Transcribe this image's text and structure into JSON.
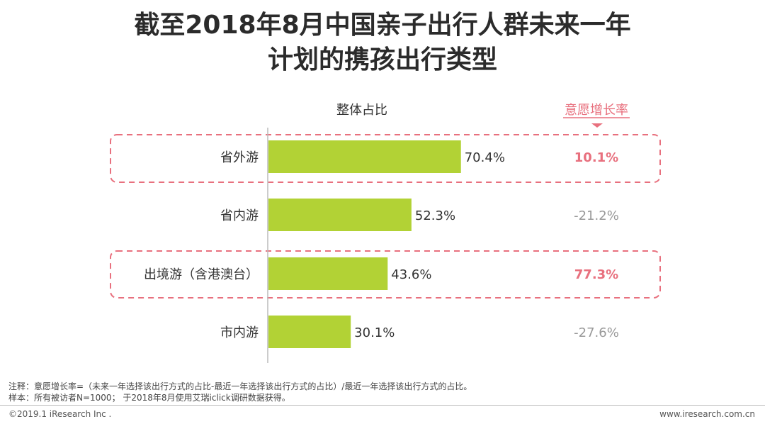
{
  "title_line1": "截至2018年8月中国亲子出行人群未来一年",
  "title_line2": "计划的携孩出行类型",
  "chart_data": {
    "type": "bar",
    "orientation": "horizontal",
    "xlim": [
      0,
      100
    ],
    "column_header": "整体占比",
    "growth_header": "意愿增长率",
    "categories": [
      "省外游",
      "省内游",
      "出境游（含港澳台）",
      "市内游"
    ],
    "values": [
      70.4,
      52.3,
      43.6,
      30.1
    ],
    "value_labels": [
      "70.4%",
      "52.3%",
      "43.6%",
      "30.1%"
    ],
    "growth_labels": [
      "10.1%",
      "-21.2%",
      "77.3%",
      "-27.6%"
    ],
    "highlighted": [
      true,
      false,
      true,
      false
    ],
    "bar_color": "#b2d235",
    "highlight_color": "#e8707e",
    "muted_color": "#999999"
  },
  "note_line1": "注释：意愿增长率=（未来一年选择该出行方式的占比-最近一年选择该出行方式的占比）/最近一年选择该出行方式的占比。",
  "note_line2": "样本：所有被访者N=1000； 于2018年8月使用艾瑞iclick调研数据获得。",
  "copyright": "©2019.1 iResearch Inc .",
  "website": "www.iresearch.com.cn"
}
